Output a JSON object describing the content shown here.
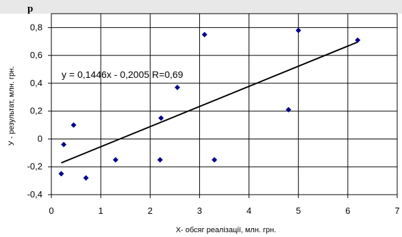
{
  "header_fragment": "р",
  "chart_data": {
    "type": "scatter",
    "xlabel": "X- обсяг реалізації, млн. грн.",
    "ylabel": "У - результат, млн. грн.",
    "xlim": [
      0,
      7
    ],
    "ylim": [
      -0.4,
      0.9
    ],
    "xticks": [
      "0",
      "1",
      "2",
      "3",
      "4",
      "5",
      "6",
      "7"
    ],
    "yticks": [
      "-0,4",
      "-0,2",
      "0",
      "0,2",
      "0,4",
      "0,6",
      "0,8"
    ],
    "grid": true,
    "points": [
      {
        "x": 0.2,
        "y": -0.25
      },
      {
        "x": 0.25,
        "y": -0.04
      },
      {
        "x": 0.45,
        "y": 0.1
      },
      {
        "x": 0.7,
        "y": -0.28
      },
      {
        "x": 1.3,
        "y": -0.15
      },
      {
        "x": 2.2,
        "y": -0.15
      },
      {
        "x": 2.22,
        "y": 0.15
      },
      {
        "x": 2.55,
        "y": 0.37
      },
      {
        "x": 3.1,
        "y": 0.75
      },
      {
        "x": 3.3,
        "y": -0.15
      },
      {
        "x": 4.8,
        "y": 0.21
      },
      {
        "x": 5.0,
        "y": 0.78
      },
      {
        "x": 6.2,
        "y": 0.71
      }
    ],
    "trendline": {
      "slope": 0.1446,
      "intercept": -0.2005,
      "x_start": 0.2,
      "x_end": 6.2
    },
    "equation_label": "y = 0,1446x - 0,2005    R=0,69",
    "marker_color": "#00008b",
    "line_color": "#000000",
    "grid_color": "#000000"
  }
}
